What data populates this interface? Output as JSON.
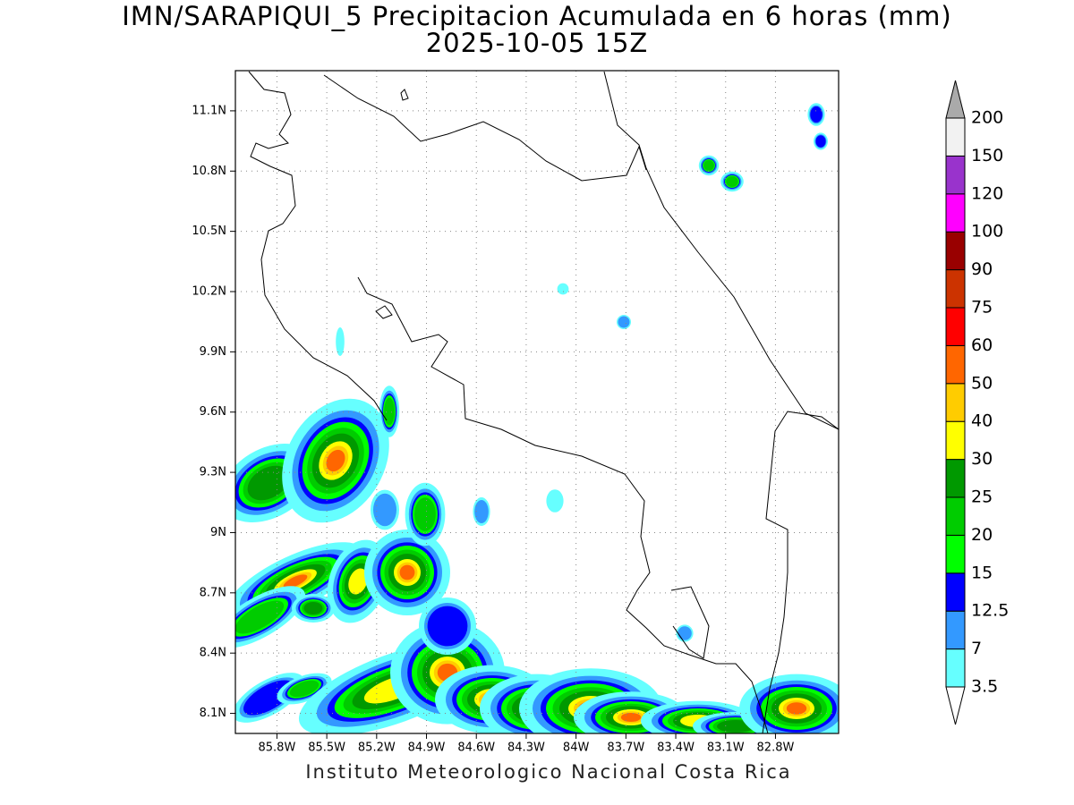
{
  "map": {
    "title": "IMN/SARAPIQUI_5 Precipitacion Acumulada en 6 horas (mm)",
    "subtitle": "2025-10-05 15Z",
    "footer": "Instituto Meteorologico Nacional Costa Rica",
    "xlim": [
      -86.05,
      -82.42
    ],
    "ylim": [
      8.0,
      11.3
    ],
    "xticks": [
      {
        "value": -85.8,
        "label": "85.8W"
      },
      {
        "value": -85.5,
        "label": "85.5W"
      },
      {
        "value": -85.2,
        "label": "85.2W"
      },
      {
        "value": -84.9,
        "label": "84.9W"
      },
      {
        "value": -84.6,
        "label": "84.6W"
      },
      {
        "value": -84.3,
        "label": "84.3W"
      },
      {
        "value": -84,
        "label": "84W"
      },
      {
        "value": -83.7,
        "label": "83.7W"
      },
      {
        "value": -83.4,
        "label": "83.4W"
      },
      {
        "value": -83.1,
        "label": "83.1W"
      },
      {
        "value": -82.8,
        "label": "82.8W"
      }
    ],
    "yticks": [
      {
        "value": 8.1,
        "label": "8.1N"
      },
      {
        "value": 8.4,
        "label": "8.4N"
      },
      {
        "value": 8.7,
        "label": "8.7N"
      },
      {
        "value": 9,
        "label": "9N"
      },
      {
        "value": 9.3,
        "label": "9.3N"
      },
      {
        "value": 9.6,
        "label": "9.6N"
      },
      {
        "value": 9.9,
        "label": "9.9N"
      },
      {
        "value": 10.2,
        "label": "10.2N"
      },
      {
        "value": 10.5,
        "label": "10.5N"
      },
      {
        "value": 10.8,
        "label": "10.8N"
      },
      {
        "value": 11.1,
        "label": "11.1N"
      }
    ],
    "grid": true,
    "colorbar": {
      "levels": [
        3.5,
        7,
        12.5,
        15,
        20,
        25,
        30,
        40,
        50,
        60,
        75,
        90,
        100,
        120,
        150,
        200
      ],
      "colors": [
        "#66ffff",
        "#3399ff",
        "#0000ff",
        "#00ff00",
        "#00cc00",
        "#009900",
        "#ffff00",
        "#ffcc00",
        "#ff6600",
        "#ff0000",
        "#cc3300",
        "#990000",
        "#ff00ff",
        "#9933cc",
        "#f2f2f2"
      ],
      "under_color": "#ffffff",
      "over_color": "#aaaaaa"
    }
  }
}
